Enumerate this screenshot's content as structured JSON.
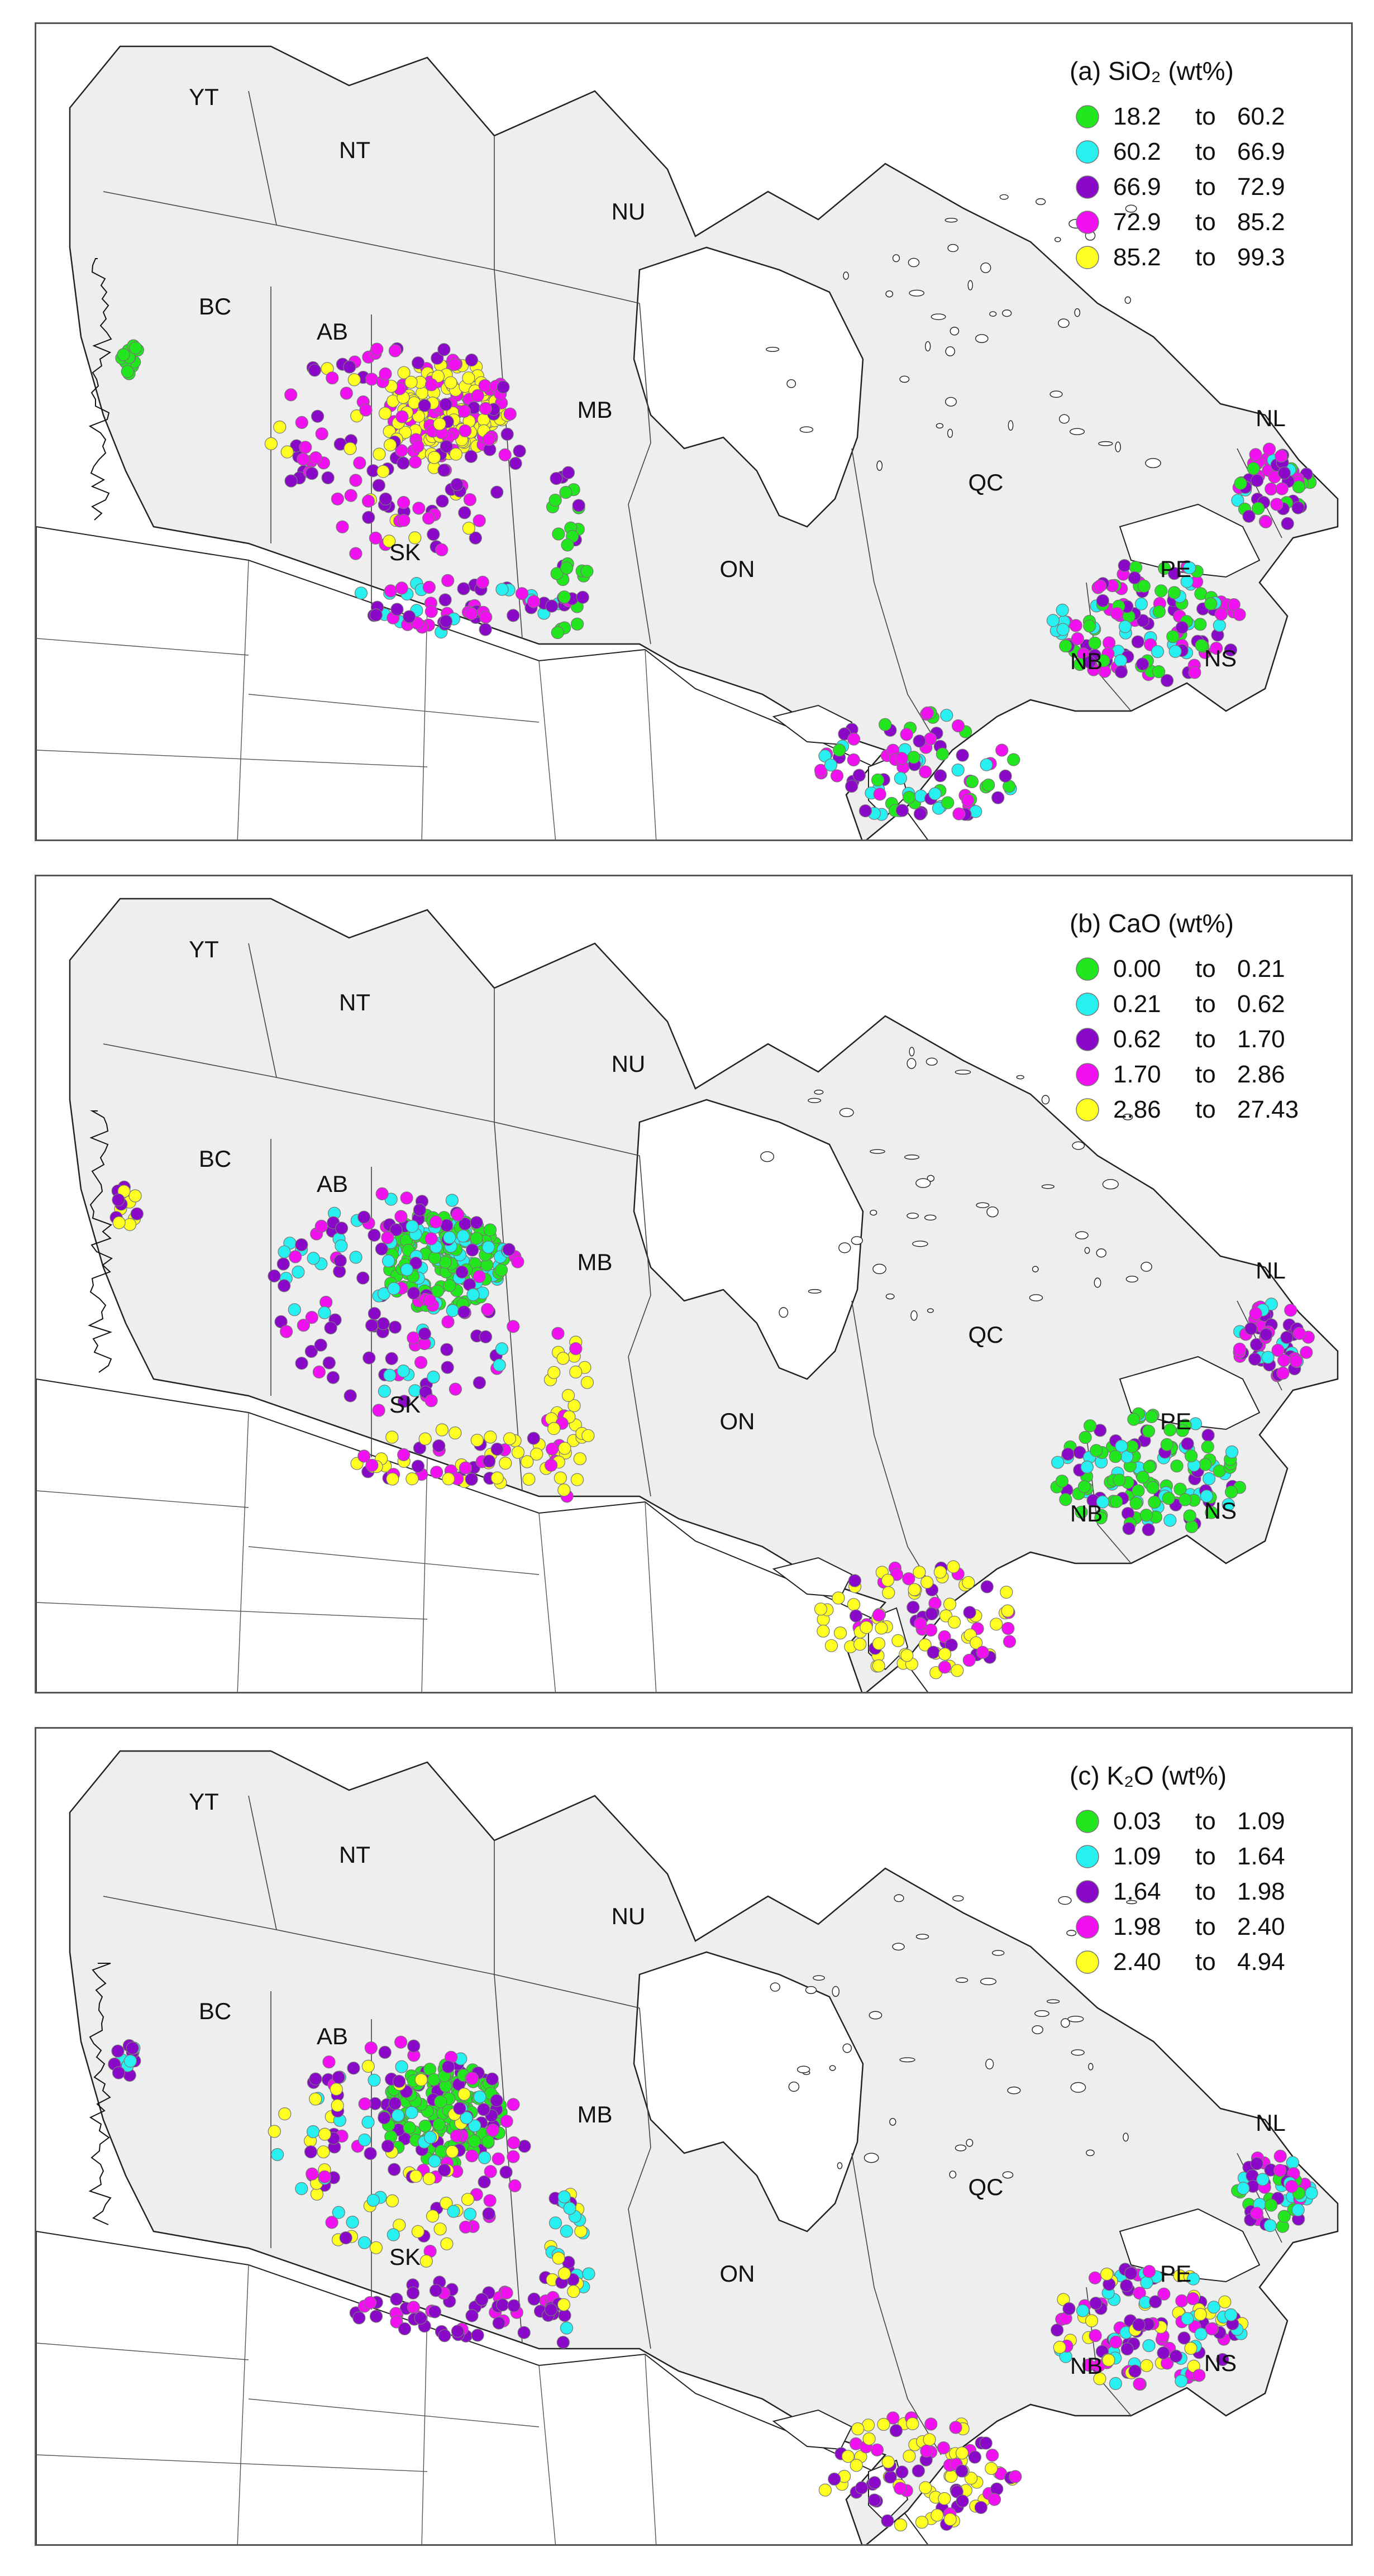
{
  "colors": {
    "green": "#22e61e",
    "cyan": "#28f0f0",
    "purple": "#8a08c8",
    "magenta": "#f010f0",
    "yellow": "#ffff22",
    "land_canada": "#eeeeee",
    "outline": "#222222"
  },
  "province_labels": [
    "YT",
    "NT",
    "NU",
    "BC",
    "AB",
    "SK",
    "MB",
    "ON",
    "QC",
    "NL",
    "PE",
    "NS",
    "NB"
  ],
  "panels": [
    {
      "title": "(a) SiO₂ (wt%)",
      "legend": [
        {
          "color": "green",
          "min": "18.2",
          "to": "to",
          "max": "60.2"
        },
        {
          "color": "cyan",
          "min": "60.2",
          "to": "to",
          "max": "66.9"
        },
        {
          "color": "purple",
          "min": "66.9",
          "to": "to",
          "max": "72.9"
        },
        {
          "color": "magenta",
          "min": "72.9",
          "to": "to",
          "max": "85.2"
        },
        {
          "color": "yellow",
          "min": "85.2",
          "to": "to",
          "max": "99.3"
        }
      ],
      "clusters": {
        "bc": [
          "green"
        ],
        "ab_core": [
          "yellow",
          "yellow",
          "yellow",
          "magenta"
        ],
        "ab_ring": [
          "magenta",
          "purple",
          "magenta",
          "yellow",
          "purple"
        ],
        "sk_south": [
          "magenta",
          "purple",
          "cyan"
        ],
        "mb_line": [
          "green",
          "green",
          "purple"
        ],
        "on_south": [
          "cyan",
          "purple",
          "green",
          "magenta"
        ],
        "maritimes": [
          "magenta",
          "purple",
          "green",
          "cyan"
        ],
        "nl": [
          "green",
          "cyan",
          "magenta",
          "purple"
        ]
      }
    },
    {
      "title": "(b) CaO (wt%)",
      "legend": [
        {
          "color": "green",
          "min": "0.00",
          "to": "to",
          "max": "0.21"
        },
        {
          "color": "cyan",
          "min": "0.21",
          "to": "to",
          "max": "0.62"
        },
        {
          "color": "purple",
          "min": "0.62",
          "to": "to",
          "max": "1.70"
        },
        {
          "color": "magenta",
          "min": "1.70",
          "to": "to",
          "max": "2.86"
        },
        {
          "color": "yellow",
          "min": "2.86",
          "to": "to",
          "max": "27.43"
        }
      ],
      "clusters": {
        "bc": [
          "purple",
          "yellow"
        ],
        "ab_core": [
          "green",
          "green",
          "green",
          "cyan"
        ],
        "ab_ring": [
          "purple",
          "cyan",
          "magenta",
          "purple"
        ],
        "sk_south": [
          "yellow",
          "yellow",
          "magenta",
          "purple"
        ],
        "mb_line": [
          "yellow",
          "yellow",
          "magenta"
        ],
        "on_south": [
          "yellow",
          "magenta",
          "purple",
          "yellow"
        ],
        "maritimes": [
          "green",
          "cyan",
          "green",
          "purple"
        ],
        "nl": [
          "purple",
          "magenta",
          "cyan",
          "purple"
        ]
      }
    },
    {
      "title": "(c) K₂O (wt%)",
      "legend": [
        {
          "color": "green",
          "min": "0.03",
          "to": "to",
          "max": "1.09"
        },
        {
          "color": "cyan",
          "min": "1.09",
          "to": "to",
          "max": "1.64"
        },
        {
          "color": "purple",
          "min": "1.64",
          "to": "to",
          "max": "1.98"
        },
        {
          "color": "magenta",
          "min": "1.98",
          "to": "to",
          "max": "2.40"
        },
        {
          "color": "yellow",
          "min": "2.40",
          "to": "to",
          "max": "4.94"
        }
      ],
      "clusters": {
        "bc": [
          "cyan",
          "purple"
        ],
        "ab_core": [
          "green",
          "green",
          "green",
          "purple"
        ],
        "ab_ring": [
          "purple",
          "magenta",
          "cyan",
          "yellow"
        ],
        "sk_south": [
          "purple",
          "purple",
          "magenta"
        ],
        "mb_line": [
          "yellow",
          "cyan",
          "purple"
        ],
        "on_south": [
          "yellow",
          "magenta",
          "purple",
          "yellow"
        ],
        "maritimes": [
          "cyan",
          "purple",
          "magenta",
          "yellow"
        ],
        "nl": [
          "magenta",
          "cyan",
          "green",
          "purple"
        ]
      }
    }
  ]
}
